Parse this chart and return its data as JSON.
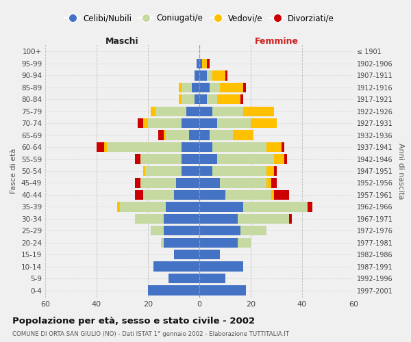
{
  "age_groups": [
    "0-4",
    "5-9",
    "10-14",
    "15-19",
    "20-24",
    "25-29",
    "30-34",
    "35-39",
    "40-44",
    "45-49",
    "50-54",
    "55-59",
    "60-64",
    "65-69",
    "70-74",
    "75-79",
    "80-84",
    "85-89",
    "90-94",
    "95-99",
    "100+"
  ],
  "birth_years": [
    "1997-2001",
    "1992-1996",
    "1987-1991",
    "1982-1986",
    "1977-1981",
    "1972-1976",
    "1967-1971",
    "1962-1966",
    "1957-1961",
    "1952-1956",
    "1947-1951",
    "1942-1946",
    "1937-1941",
    "1932-1936",
    "1927-1931",
    "1922-1926",
    "1917-1921",
    "1912-1916",
    "1907-1911",
    "1902-1906",
    "≤ 1901"
  ],
  "maschi": {
    "celibi": [
      20,
      12,
      18,
      10,
      14,
      14,
      14,
      13,
      10,
      9,
      7,
      7,
      7,
      4,
      7,
      5,
      2,
      3,
      2,
      1,
      0
    ],
    "coniugati": [
      0,
      0,
      0,
      0,
      1,
      5,
      11,
      18,
      12,
      14,
      14,
      16,
      29,
      9,
      13,
      12,
      5,
      4,
      0,
      0,
      0
    ],
    "vedovi": [
      0,
      0,
      0,
      0,
      0,
      0,
      0,
      1,
      0,
      0,
      1,
      0,
      1,
      1,
      2,
      2,
      1,
      1,
      0,
      0,
      0
    ],
    "divorziati": [
      0,
      0,
      0,
      0,
      0,
      0,
      0,
      0,
      3,
      2,
      0,
      2,
      3,
      2,
      2,
      0,
      0,
      0,
      0,
      0,
      0
    ]
  },
  "femmine": {
    "nubili": [
      18,
      10,
      17,
      8,
      15,
      16,
      15,
      17,
      10,
      8,
      5,
      7,
      5,
      4,
      7,
      5,
      3,
      4,
      3,
      1,
      0
    ],
    "coniugate": [
      0,
      0,
      0,
      0,
      5,
      10,
      20,
      25,
      18,
      18,
      21,
      22,
      21,
      9,
      13,
      12,
      4,
      4,
      2,
      0,
      0
    ],
    "vedove": [
      0,
      0,
      0,
      0,
      0,
      0,
      0,
      0,
      1,
      2,
      3,
      4,
      6,
      8,
      10,
      12,
      9,
      9,
      5,
      2,
      0
    ],
    "divorziate": [
      0,
      0,
      0,
      0,
      0,
      0,
      1,
      2,
      6,
      2,
      1,
      1,
      1,
      0,
      0,
      0,
      1,
      1,
      1,
      1,
      0
    ]
  },
  "colors": {
    "celibi_nubili": "#4472c4",
    "coniugati": "#c5d9a0",
    "vedovi": "#ffc000",
    "divorziati": "#cc0000"
  },
  "title": "Popolazione per età, sesso e stato civile - 2002",
  "subtitle": "COMUNE DI ORTA SAN GIULIO (NO) - Dati ISTAT 1° gennaio 2002 - Elaborazione TUTTITALIA.IT",
  "xlabel_left": "Maschi",
  "xlabel_right": "Femmine",
  "ylabel_left": "Fasce di età",
  "ylabel_right": "Anni di nascita",
  "xlim": 60,
  "legend_labels": [
    "Celibi/Nubili",
    "Coniugati/e",
    "Vedovi/e",
    "Divorziati/e"
  ],
  "bg_color": "#f0f0f0"
}
